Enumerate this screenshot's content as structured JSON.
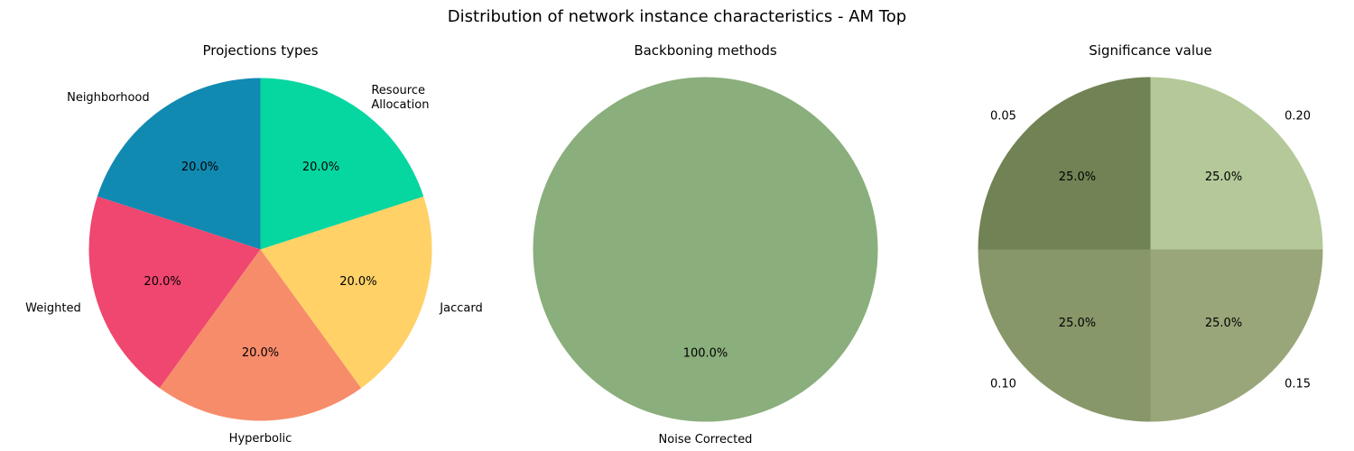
{
  "figure": {
    "title": "Distribution of network instance characteristics - AM Top"
  },
  "chart_data": [
    {
      "type": "pie",
      "title": "Projections types",
      "labels": [
        "Neighborhood",
        "Weighted",
        "Hyperbolic",
        "Jaccard",
        "Resource\nAllocation"
      ],
      "values": [
        20.0,
        20.0,
        20.0,
        20.0,
        20.0
      ],
      "value_labels": [
        "20.0%",
        "20.0%",
        "20.0%",
        "20.0%",
        "20.0%"
      ],
      "colors": [
        "#118ab2",
        "#ef476f",
        "#f78c6b",
        "#ffd166",
        "#06d6a0"
      ],
      "start_angle_deg": 90,
      "direction": "counterclockwise"
    },
    {
      "type": "pie",
      "title": "Backboning methods",
      "labels": [
        "Noise Corrected"
      ],
      "values": [
        100.0
      ],
      "value_labels": [
        "100.0%"
      ],
      "colors": [
        "#8aae7c"
      ],
      "start_angle_deg": 90,
      "direction": "counterclockwise"
    },
    {
      "type": "pie",
      "title": "Significance value",
      "labels": [
        "0.05",
        "0.10",
        "0.15",
        "0.20"
      ],
      "values": [
        25.0,
        25.0,
        25.0,
        25.0
      ],
      "value_labels": [
        "25.0%",
        "25.0%",
        "25.0%",
        "25.0%"
      ],
      "colors": [
        "#718254",
        "#879769",
        "#99a679",
        "#b4c899"
      ],
      "start_angle_deg": 90,
      "direction": "counterclockwise"
    }
  ]
}
